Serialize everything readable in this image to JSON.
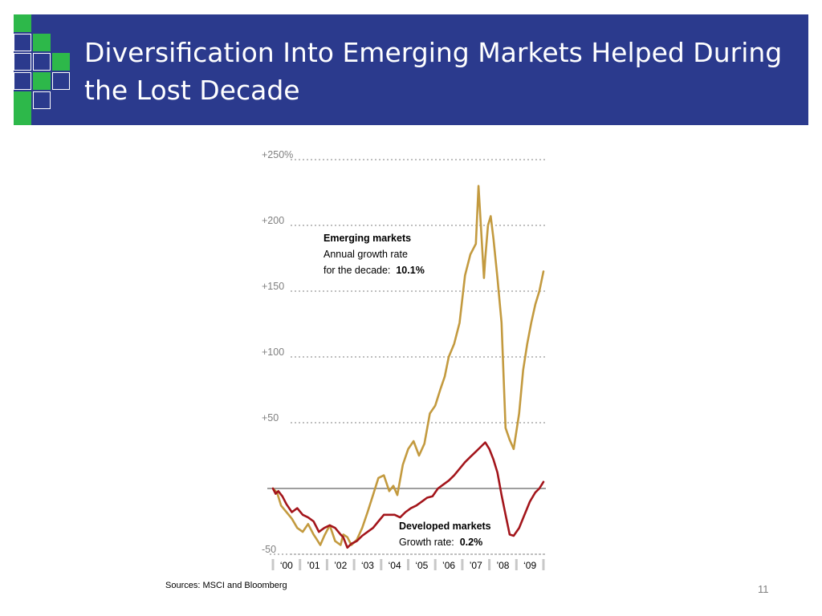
{
  "slide": {
    "title": "Diversification Into Emerging Markets Helped During the Lost Decade",
    "sources": "Sources:  MSCI and Bloomberg",
    "page_number": "11"
  },
  "colors": {
    "banner": "#2b3a8d",
    "logo_green": "#2db84a",
    "emerging_line": "#c39a3f",
    "developed_line": "#a3151b",
    "baseline": "#7f7f7f",
    "gridline": "#bfbfbf"
  },
  "chart_data": {
    "type": "line",
    "title": "",
    "xlabel": "",
    "ylabel": "",
    "ylim": [
      -55,
      252
    ],
    "xlim": [
      2000,
      2010
    ],
    "grid": true,
    "y_ticks": [
      {
        "value": 250,
        "label": "+250%"
      },
      {
        "value": 200,
        "label": "+200"
      },
      {
        "value": 150,
        "label": "+150"
      },
      {
        "value": 100,
        "label": "+100"
      },
      {
        "value": 50,
        "label": "+50"
      },
      {
        "value": -50,
        "label": "-50"
      }
    ],
    "x_ticks": [
      {
        "value": 2000,
        "label": "‘00"
      },
      {
        "value": 2001,
        "label": "’01"
      },
      {
        "value": 2002,
        "label": "’02"
      },
      {
        "value": 2003,
        "label": "‘03"
      },
      {
        "value": 2004,
        "label": "‘04"
      },
      {
        "value": 2005,
        "label": "‘05"
      },
      {
        "value": 2006,
        "label": "’06"
      },
      {
        "value": 2007,
        "label": "’07"
      },
      {
        "value": 2008,
        "label": "’08"
      },
      {
        "value": 2009,
        "label": "‘09"
      }
    ],
    "baseline": 0,
    "series": [
      {
        "name": "Emerging markets",
        "color": "#c39a3f",
        "x": [
          2000.0,
          2000.15,
          2000.3,
          2000.5,
          2000.7,
          2000.9,
          2001.1,
          2001.3,
          2001.5,
          2001.6,
          2001.75,
          2001.9,
          2002.1,
          2002.3,
          2002.5,
          2002.6,
          2002.75,
          2002.9,
          2003.1,
          2003.3,
          2003.5,
          2003.7,
          2003.9,
          2004.1,
          2004.3,
          2004.45,
          2004.6,
          2004.8,
          2005.0,
          2005.2,
          2005.4,
          2005.6,
          2005.8,
          2006.0,
          2006.2,
          2006.35,
          2006.5,
          2006.7,
          2006.9,
          2007.1,
          2007.3,
          2007.5,
          2007.6,
          2007.7,
          2007.8,
          2007.85,
          2007.95,
          2008.05,
          2008.15,
          2008.3,
          2008.45,
          2008.6,
          2008.75,
          2008.9,
          2009.1,
          2009.25,
          2009.4,
          2009.55,
          2009.7,
          2009.85,
          2010.0
        ],
        "y": [
          0,
          -3,
          -13,
          -18,
          -23,
          -30,
          -33,
          -27,
          -35,
          -38,
          -43,
          -36,
          -28,
          -40,
          -43,
          -35,
          -37,
          -43,
          -39,
          -30,
          -18,
          -5,
          8,
          10,
          -2,
          2,
          -5,
          18,
          30,
          36,
          25,
          34,
          57,
          63,
          76,
          85,
          100,
          110,
          126,
          162,
          178,
          186,
          230,
          195,
          160,
          175,
          200,
          207,
          190,
          160,
          126,
          46,
          37,
          30,
          57,
          90,
          110,
          126,
          140,
          150,
          165
        ]
      },
      {
        "name": "Developed markets",
        "color": "#a3151b",
        "x": [
          2000.0,
          2000.1,
          2000.2,
          2000.35,
          2000.5,
          2000.7,
          2000.9,
          2001.1,
          2001.3,
          2001.5,
          2001.7,
          2001.9,
          2002.1,
          2002.3,
          2002.5,
          2002.6,
          2002.75,
          2002.9,
          2003.1,
          2003.3,
          2003.5,
          2003.7,
          2003.9,
          2004.1,
          2004.3,
          2004.5,
          2004.7,
          2004.9,
          2005.1,
          2005.3,
          2005.5,
          2005.7,
          2005.9,
          2006.1,
          2006.3,
          2006.5,
          2006.7,
          2006.9,
          2007.1,
          2007.3,
          2007.5,
          2007.7,
          2007.85,
          2008.0,
          2008.15,
          2008.3,
          2008.45,
          2008.6,
          2008.75,
          2008.9,
          2009.1,
          2009.3,
          2009.5,
          2009.7,
          2009.85,
          2010.0
        ],
        "y": [
          0,
          -4,
          -2,
          -6,
          -12,
          -18,
          -15,
          -20,
          -22,
          -25,
          -33,
          -30,
          -28,
          -30,
          -35,
          -37,
          -45,
          -42,
          -40,
          -36,
          -33,
          -30,
          -25,
          -20,
          -20,
          -20,
          -22,
          -18,
          -15,
          -13,
          -10,
          -7,
          -6,
          0,
          3,
          6,
          10,
          15,
          20,
          24,
          28,
          32,
          35,
          30,
          22,
          12,
          -5,
          -20,
          -35,
          -36,
          -30,
          -20,
          -10,
          -3,
          0,
          5
        ]
      }
    ],
    "annotations": {
      "emerging": {
        "line1": "Emerging markets",
        "line2": "Annual growth rate",
        "line3": "for the decade:",
        "rate": "10.1%"
      },
      "developed": {
        "line1": "Developed markets",
        "line2": "Growth rate:",
        "rate": "0.2%"
      }
    }
  }
}
